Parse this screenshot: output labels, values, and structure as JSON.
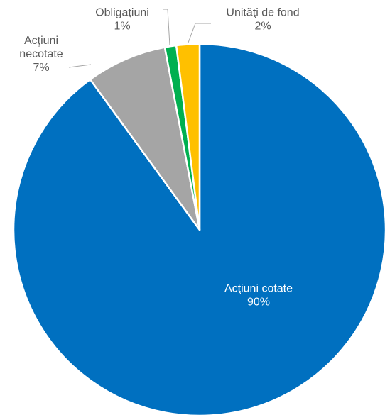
{
  "chart_data": {
    "type": "pie",
    "title": "",
    "start_angle_deg": 0,
    "direction": "clockwise",
    "legend": "none",
    "slices": [
      {
        "label": "Acţiuni cotate",
        "value": 90,
        "value_label": "90%",
        "color": "#0070C0",
        "label_color": "#ffffff"
      },
      {
        "label": "Acţiuni necotate",
        "value": 7,
        "value_label": "7%",
        "color": "#A5A5A5",
        "label_color": "#595959"
      },
      {
        "label": "Obligaţiuni",
        "value": 1,
        "value_label": "1%",
        "color": "#00B050",
        "label_color": "#595959"
      },
      {
        "label": "Unităţi de fond",
        "value": 2,
        "value_label": "2%",
        "color": "#FFC000",
        "label_color": "#595959"
      }
    ]
  }
}
